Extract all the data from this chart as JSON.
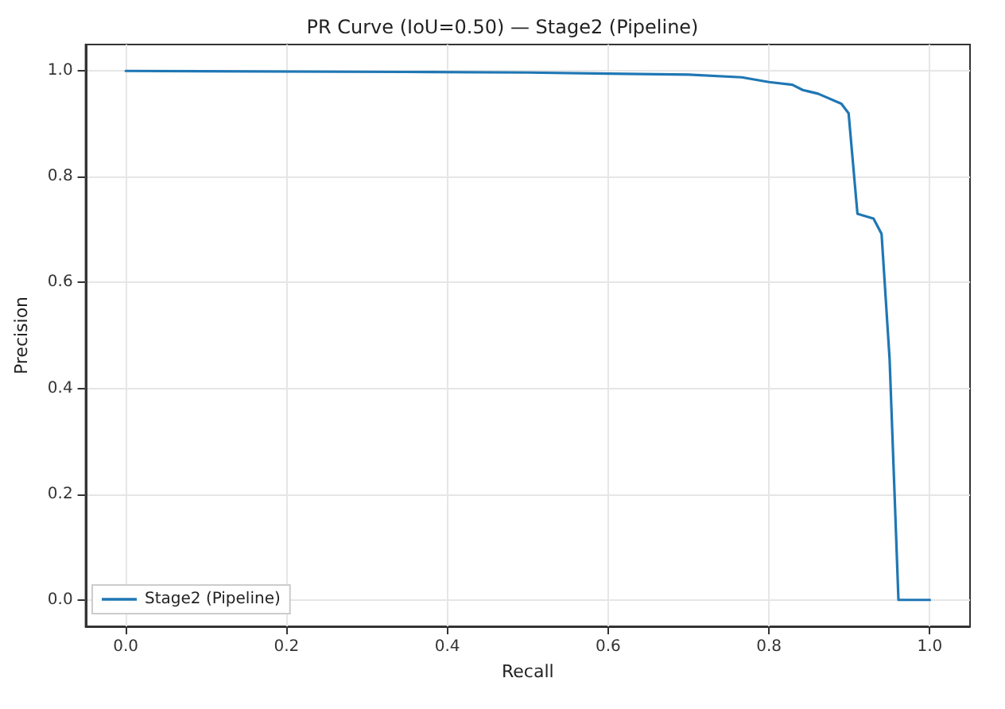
{
  "chart_data": {
    "type": "line",
    "title": "PR Curve (IoU=0.50) — Stage2 (Pipeline)",
    "xlabel": "Recall",
    "ylabel": "Precision",
    "series": [
      {
        "name": "Stage2 (Pipeline)",
        "color": "#1f77b4",
        "x": [
          0,
          0.38,
          0.5,
          0.6,
          0.7,
          0.766,
          0.8,
          0.829,
          0.842,
          0.861,
          0.89,
          0.899,
          0.91,
          0.93,
          0.94,
          0.95,
          0.961,
          1.0
        ],
        "values": [
          1.0,
          0.998,
          0.997,
          0.995,
          0.993,
          0.988,
          0.979,
          0.974,
          0.964,
          0.957,
          0.938,
          0.92,
          0.73,
          0.721,
          0.692,
          0.455,
          0.0,
          0.0
        ]
      }
    ],
    "xlim": [
      -0.05,
      1.05
    ],
    "xticks": [
      {
        "value": 0,
        "label": "0.0"
      },
      0.2,
      0.4,
      0.6,
      0.8,
      {
        "value": 1,
        "label": "1.0"
      }
    ],
    "ylim": [
      -0.05,
      1.05
    ],
    "yticks": [
      {
        "value": 0,
        "label": "0.0"
      },
      0.2,
      0.4,
      0.6,
      0.8,
      {
        "value": 1,
        "label": "1.0"
      }
    ],
    "grid": true,
    "legend": "bottom left",
    "marker": "none",
    "line_style": "solid"
  }
}
